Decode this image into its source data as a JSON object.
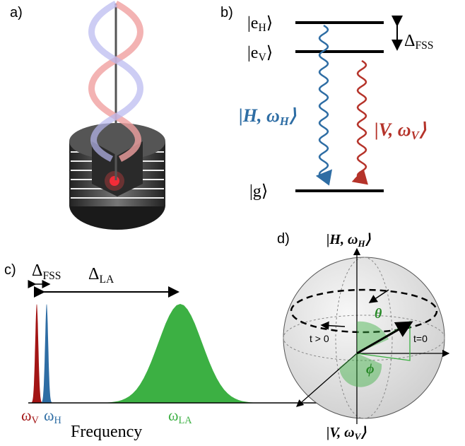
{
  "panel_a": {
    "label": "a)"
  },
  "panel_b": {
    "label": "b)",
    "levels": [
      {
        "prefix": "|e",
        "sub": "H",
        "suffix": "⟩"
      },
      {
        "prefix": "|e",
        "sub": "V",
        "suffix": "⟩"
      },
      {
        "prefix": "|g",
        "suffix": "⟩"
      }
    ],
    "splitting": {
      "main": "Δ",
      "sub": "FSS"
    },
    "photon_h": {
      "prefix": "|H, ω",
      "sub": "H",
      "suffix": "⟩"
    },
    "photon_v": {
      "prefix": "|V, ω",
      "sub": "V",
      "suffix": "⟩"
    }
  },
  "panel_c": {
    "label": "c)",
    "delta_fss": {
      "main": "Δ",
      "sub": "FSS"
    },
    "delta_la": {
      "main": "Δ",
      "sub": "LA"
    },
    "omega_v": {
      "main": "ω",
      "sub": "V"
    },
    "omega_h": {
      "main": "ω",
      "sub": "H"
    },
    "omega_la": {
      "main": "ω",
      "sub": "LA"
    },
    "x_label": "Frequency"
  },
  "panel_d": {
    "label": "d)",
    "top": {
      "prefix": "|H, ω",
      "sub": "H",
      "suffix": "⟩"
    },
    "bottom": {
      "prefix": "|V, ω",
      "sub": "V",
      "suffix": "⟩"
    },
    "theta": "θ",
    "phi": "ϕ",
    "t_later": "t > 0",
    "t_start": "t=0"
  }
}
